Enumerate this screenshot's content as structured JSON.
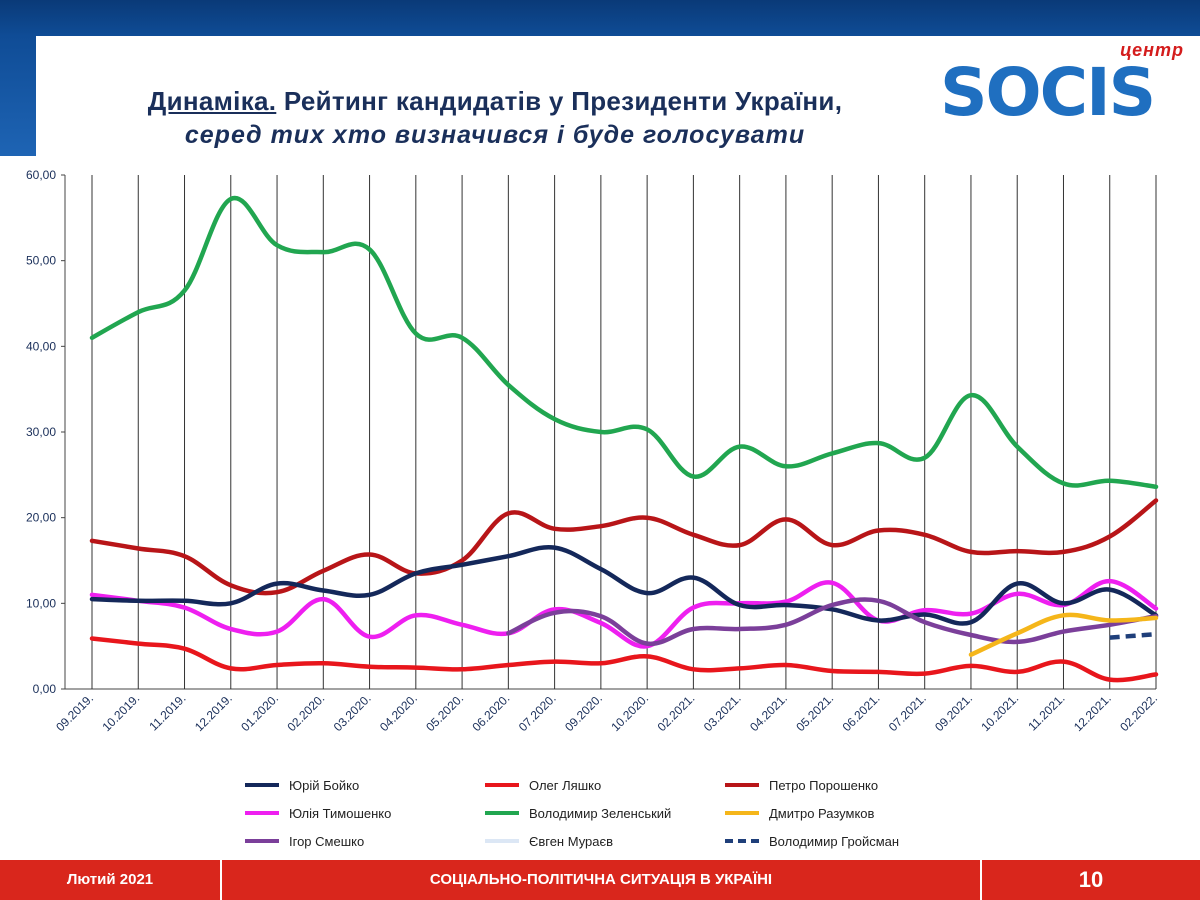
{
  "title": {
    "underlined": "Динаміка.",
    "main": "Рейтинг кандидатів у Президенти України,",
    "subtitle": "серед тих хто визначився  і буде голосувати"
  },
  "logo": {
    "small": "центр",
    "word": "SOCIS"
  },
  "footer": {
    "left": "Лютий 2021",
    "center": "СОЦІАЛЬНО-ПОЛІТИЧНА СИТУАЦІЯ  В УКРАЇНІ",
    "page": "10"
  },
  "chart_data": {
    "type": "line",
    "categories": [
      "09.2019.",
      "10.2019.",
      "11.2019.",
      "12.2019.",
      "01.2020.",
      "02.2020.",
      "03.2020.",
      "04.2020.",
      "05.2020.",
      "06.2020.",
      "07.2020.",
      "09.2020.",
      "10.2020.",
      "02.2021.",
      "03.2021.",
      "04.2021.",
      "05.2021.",
      "06.2021.",
      "07.2021.",
      "09.2021.",
      "10.2021.",
      "11.2021.",
      "12.2021.",
      "02.2022."
    ],
    "yticks": [
      "0,00",
      "10,00",
      "20,00",
      "30,00",
      "40,00",
      "50,00",
      "60,00"
    ],
    "ylim": [
      0,
      60
    ],
    "grid": "vertical lines at each category",
    "legend_position": "bottom",
    "series": [
      {
        "name": "Юрій Бойко",
        "color": "#14285a",
        "dashed": false,
        "values": [
          10.5,
          10.3,
          10.3,
          10.0,
          12.3,
          11.5,
          11.0,
          13.5,
          14.5,
          15.5,
          16.5,
          14.0,
          11.2,
          13.0,
          9.8,
          9.8,
          9.3,
          8.0,
          8.7,
          7.8,
          12.3,
          10.0,
          11.6,
          8.6
        ]
      },
      {
        "name": "Олег Ляшко",
        "color": "#e8161c",
        "dashed": false,
        "values": [
          5.9,
          5.3,
          4.7,
          2.4,
          2.8,
          3.0,
          2.6,
          2.5,
          2.3,
          2.8,
          3.2,
          3.0,
          3.8,
          2.3,
          2.4,
          2.8,
          2.1,
          2.0,
          1.8,
          2.7,
          2.0,
          3.2,
          1.1,
          1.7
        ]
      },
      {
        "name": "Петро Порошенко",
        "color": "#b81518",
        "dashed": false,
        "values": [
          17.3,
          16.4,
          15.5,
          12.1,
          11.3,
          13.8,
          15.7,
          13.5,
          15.0,
          20.5,
          18.7,
          19.0,
          20.0,
          18.0,
          16.8,
          19.8,
          16.8,
          18.5,
          18.0,
          16.0,
          16.1,
          16.0,
          17.8,
          22.0
        ]
      },
      {
        "name": "Юлія Тимошенко",
        "color": "#ee1ff0",
        "dashed": false,
        "values": [
          11.0,
          10.3,
          9.5,
          7.0,
          6.7,
          10.5,
          6.1,
          8.6,
          7.5,
          6.5,
          9.3,
          7.7,
          5.0,
          9.5,
          10.0,
          10.2,
          12.4,
          8.0,
          9.2,
          8.8,
          11.1,
          9.8,
          12.6,
          9.4
        ]
      },
      {
        "name": "Володимир Зеленський",
        "color": "#21a650",
        "dashed": false,
        "values": [
          41.0,
          44.0,
          46.5,
          57.2,
          51.8,
          51.0,
          51.3,
          41.5,
          41.0,
          35.5,
          31.5,
          30.0,
          30.3,
          24.8,
          28.3,
          26.0,
          27.5,
          28.7,
          27.0,
          34.3,
          28.3,
          24.0,
          24.3,
          23.6
        ]
      },
      {
        "name": "Дмитро Разумков",
        "color": "#f5b61a",
        "dashed": false,
        "values": [
          null,
          null,
          null,
          null,
          null,
          null,
          null,
          null,
          null,
          null,
          null,
          null,
          null,
          null,
          null,
          null,
          null,
          null,
          null,
          4.0,
          6.5,
          8.6,
          8.0,
          8.3
        ]
      },
      {
        "name": "Ігор Смешко",
        "color": "#7b3f9a",
        "dashed": false,
        "values": [
          null,
          null,
          null,
          null,
          null,
          null,
          null,
          null,
          null,
          6.5,
          8.9,
          8.5,
          5.3,
          7.0,
          7.0,
          7.5,
          9.8,
          10.3,
          7.8,
          6.3,
          5.5,
          6.7,
          7.5,
          8.5
        ]
      },
      {
        "name": "Євген Мураєв",
        "color": "#dce7f5",
        "dashed": false,
        "values": [
          null,
          null,
          null,
          null,
          null,
          null,
          null,
          null,
          null,
          null,
          null,
          null,
          null,
          null,
          null,
          null,
          null,
          null,
          null,
          null,
          null,
          null,
          null,
          null
        ]
      },
      {
        "name": "Володимир Гройсман",
        "color": "#1f3f7a",
        "dashed": true,
        "values": [
          null,
          null,
          null,
          null,
          null,
          null,
          null,
          null,
          null,
          null,
          null,
          null,
          null,
          null,
          null,
          null,
          null,
          null,
          null,
          null,
          null,
          null,
          6.0,
          6.4
        ]
      }
    ]
  }
}
